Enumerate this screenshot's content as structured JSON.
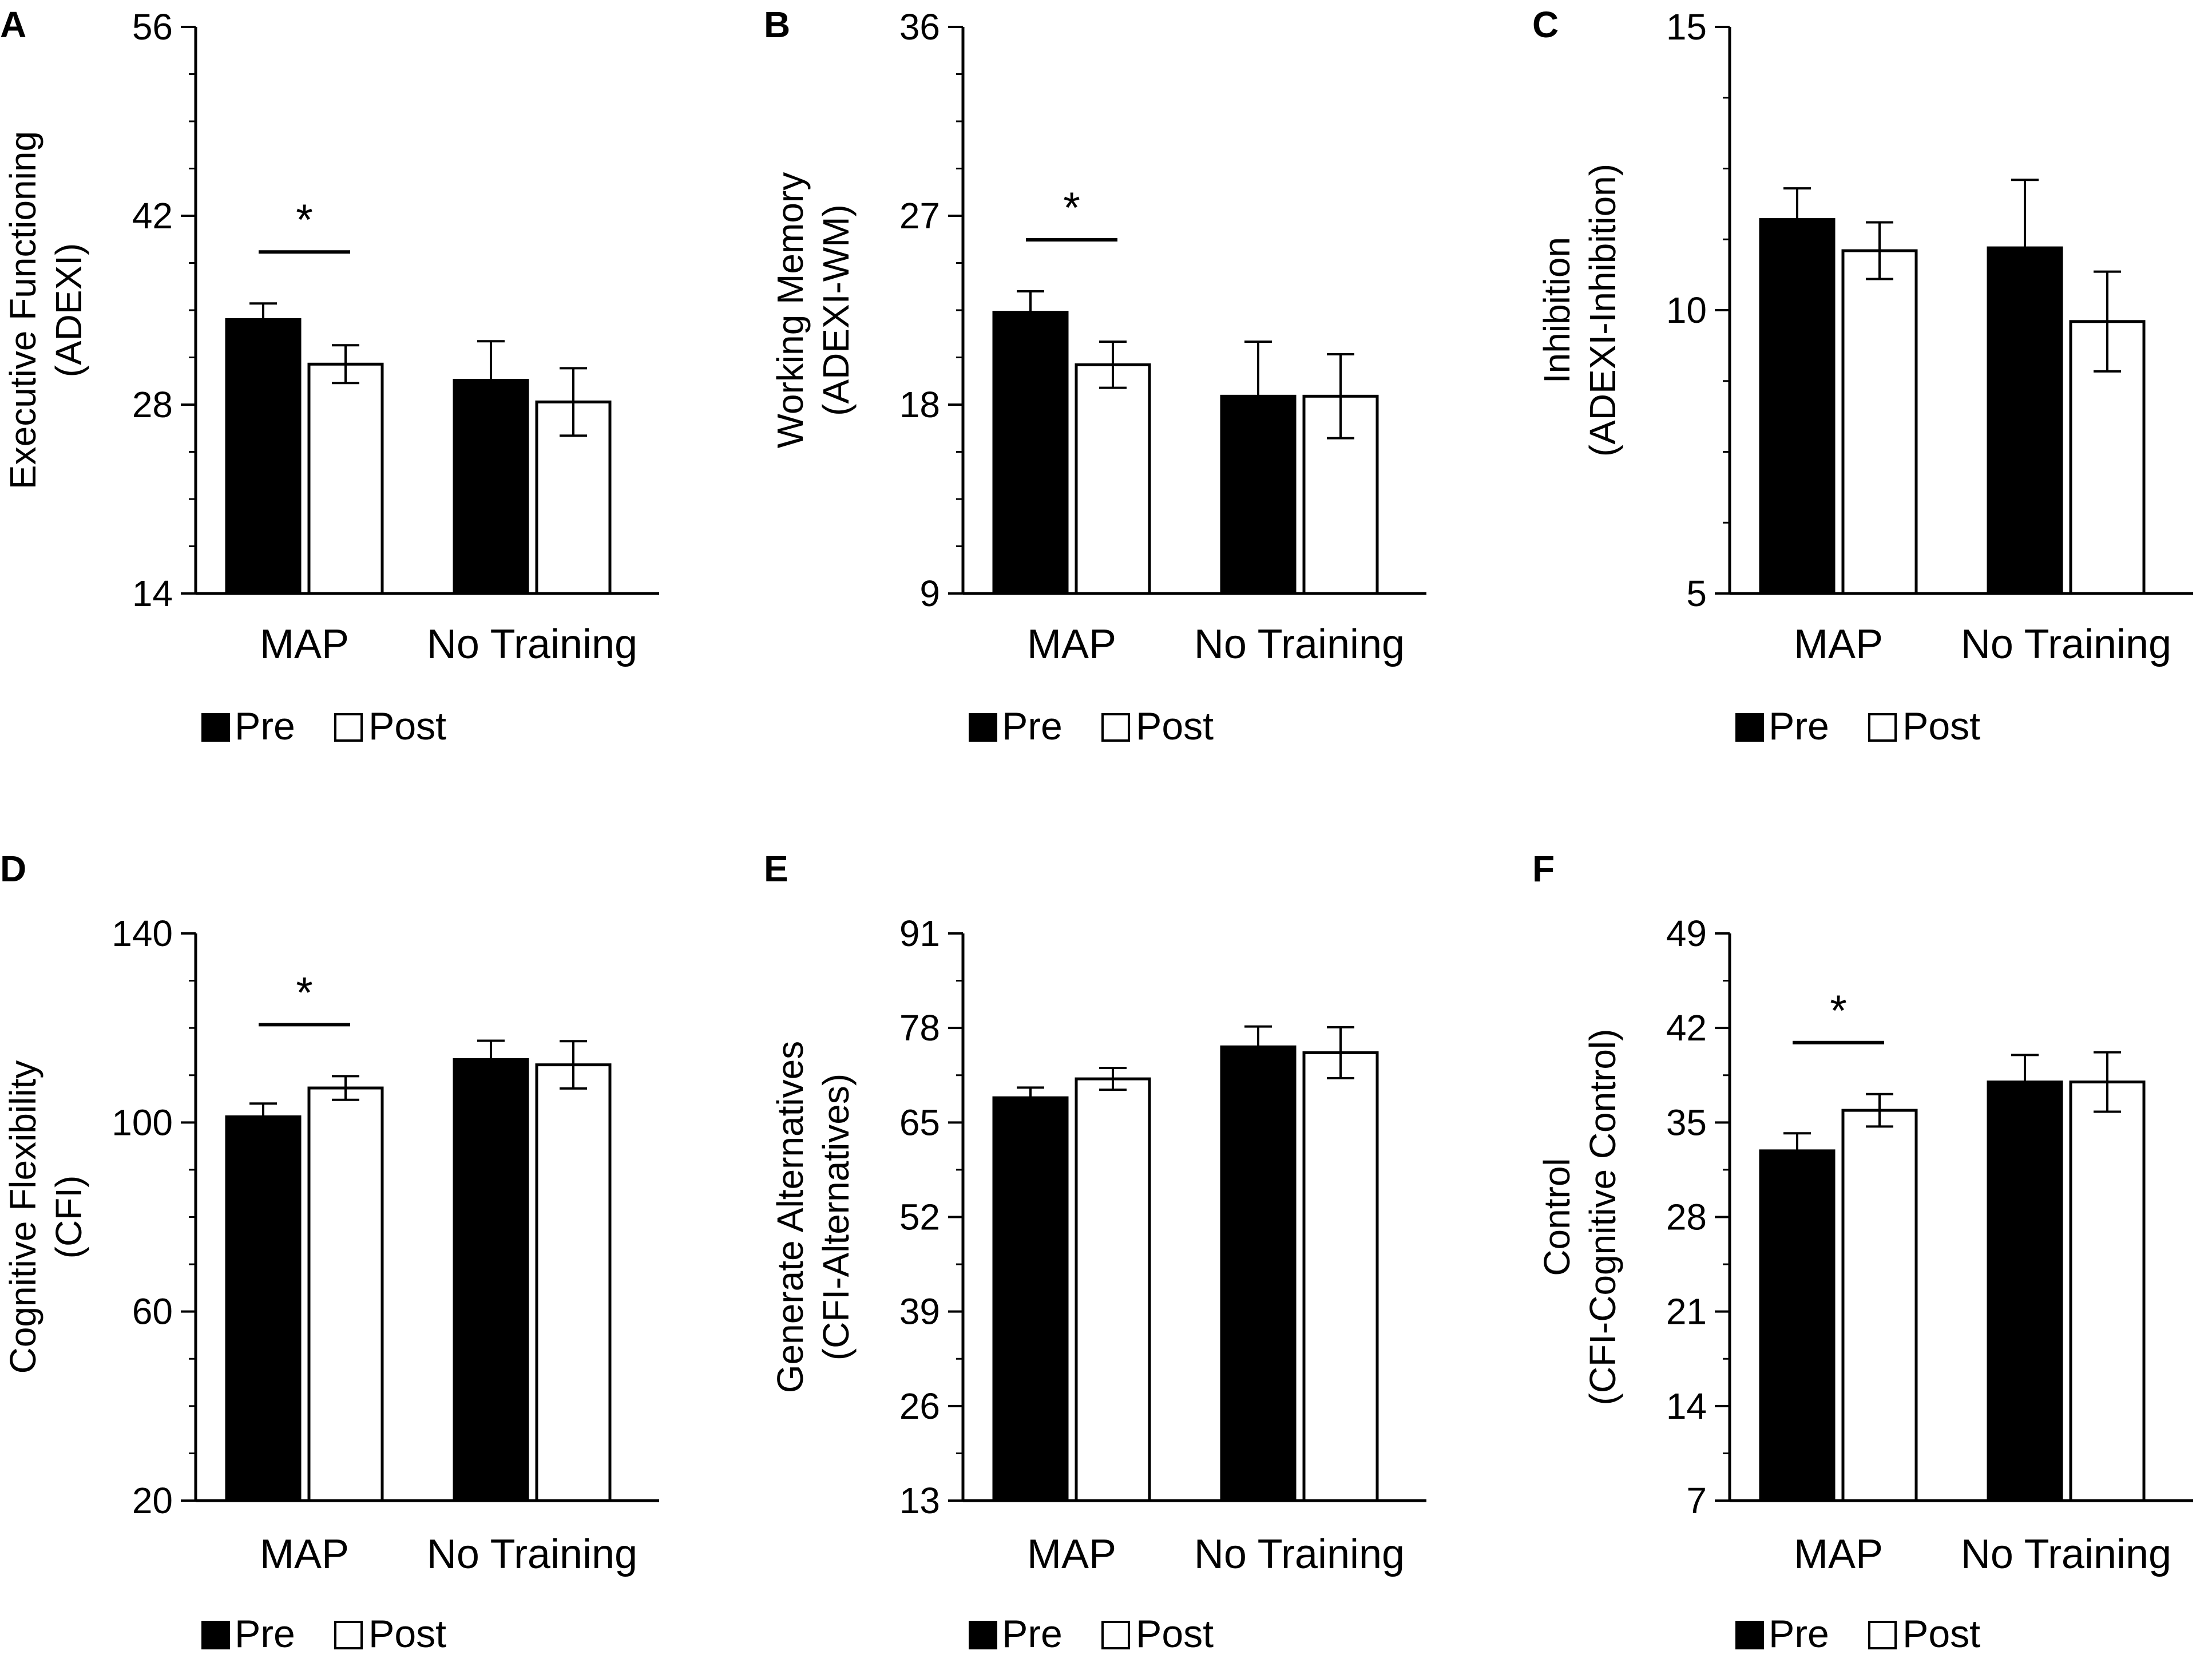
{
  "colors": {
    "pre": "#000000",
    "post": "#ffffff",
    "axis": "#000000",
    "background": "#ffffff"
  },
  "legend": {
    "pre_label": "Pre",
    "post_label": "Post"
  },
  "chart_data": [
    {
      "type": "bar",
      "panel": "A",
      "ylabel_lines": [
        "Executive Functioning",
        "(ADEXI)"
      ],
      "ylim": [
        14,
        56
      ],
      "yticks": [
        14,
        28,
        42,
        56
      ],
      "minor_step": 3.5,
      "categories": [
        "MAP",
        "No Training"
      ],
      "series": [
        {
          "name": "Pre",
          "values": [
            34.3,
            29.8
          ],
          "errors": [
            1.2,
            2.9
          ]
        },
        {
          "name": "Post",
          "values": [
            31.0,
            28.2
          ],
          "errors": [
            1.4,
            2.5
          ]
        }
      ],
      "significance": [
        {
          "category": 0,
          "label": "*"
        }
      ]
    },
    {
      "type": "bar",
      "panel": "B",
      "ylabel_lines": [
        "Working Memory",
        "(ADEXI-WM)"
      ],
      "ylim": [
        9,
        36
      ],
      "yticks": [
        9,
        18,
        27,
        36
      ],
      "minor_step": 2.25,
      "categories": [
        "MAP",
        "No Training"
      ],
      "series": [
        {
          "name": "Pre",
          "values": [
            22.4,
            18.4
          ],
          "errors": [
            1.0,
            2.6
          ]
        },
        {
          "name": "Post",
          "values": [
            19.9,
            18.4
          ],
          "errors": [
            1.1,
            2.0
          ]
        }
      ],
      "significance": [
        {
          "category": 0,
          "label": "*"
        }
      ]
    },
    {
      "type": "bar",
      "panel": "C",
      "ylabel_lines": [
        "Inhibition",
        "(ADEXI-Inhibition)"
      ],
      "ylim": [
        5,
        15
      ],
      "yticks": [
        5,
        10,
        15
      ],
      "minor_step": 1.25,
      "categories": [
        "MAP",
        "No Training"
      ],
      "series": [
        {
          "name": "Pre",
          "values": [
            11.6,
            11.1
          ],
          "errors": [
            0.55,
            1.2
          ]
        },
        {
          "name": "Post",
          "values": [
            11.05,
            9.8
          ],
          "errors": [
            0.5,
            0.88
          ]
        }
      ],
      "significance": []
    },
    {
      "type": "bar",
      "panel": "D",
      "ylabel_lines": [
        "Cognitive Flexibility",
        "(CFI)"
      ],
      "ylim": [
        20,
        140
      ],
      "yticks": [
        20,
        60,
        100,
        140
      ],
      "minor_step": 10,
      "categories": [
        "MAP",
        "No Training"
      ],
      "series": [
        {
          "name": "Pre",
          "values": [
            101.2,
            113.3
          ],
          "errors": [
            2.8,
            4.0
          ]
        },
        {
          "name": "Post",
          "values": [
            107.3,
            112.2
          ],
          "errors": [
            2.5,
            5.0
          ]
        }
      ],
      "significance": [
        {
          "category": 0,
          "label": "*"
        }
      ]
    },
    {
      "type": "bar",
      "panel": "E",
      "ylabel_lines": [
        "Generate Alternatives",
        "(CFI-Alternatives)"
      ],
      "ylim": [
        13,
        91
      ],
      "yticks": [
        13,
        26,
        39,
        52,
        65,
        78,
        91
      ],
      "minor_step": 6.5,
      "categories": [
        "MAP",
        "No Training"
      ],
      "series": [
        {
          "name": "Pre",
          "values": [
            68.4,
            75.4
          ],
          "errors": [
            1.4,
            2.8
          ]
        },
        {
          "name": "Post",
          "values": [
            71.0,
            74.6
          ],
          "errors": [
            1.5,
            3.5
          ]
        }
      ],
      "significance": []
    },
    {
      "type": "bar",
      "panel": "F",
      "ylabel_lines": [
        "Control",
        "(CFI-Cognitive Control)"
      ],
      "ylim": [
        7,
        49
      ],
      "yticks": [
        7,
        14,
        21,
        28,
        35,
        42,
        49
      ],
      "minor_step": 3.5,
      "categories": [
        "MAP",
        "No Training"
      ],
      "series": [
        {
          "name": "Pre",
          "values": [
            32.9,
            38.0
          ],
          "errors": [
            1.3,
            2.0
          ]
        },
        {
          "name": "Post",
          "values": [
            35.9,
            38.0
          ],
          "errors": [
            1.2,
            2.2
          ]
        }
      ],
      "significance": [
        {
          "category": 0,
          "label": "*"
        }
      ]
    }
  ]
}
